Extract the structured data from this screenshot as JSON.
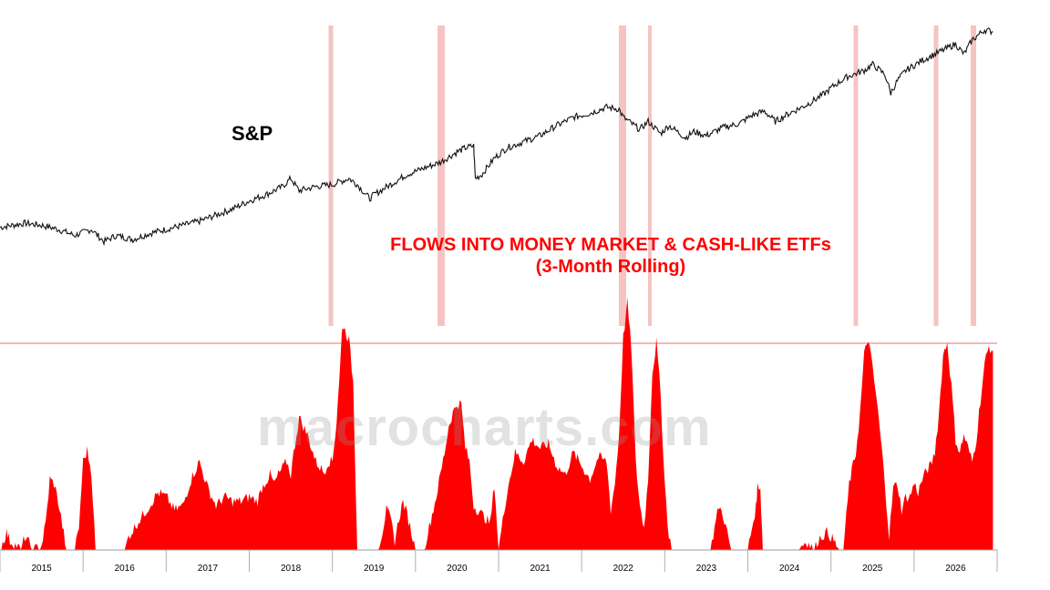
{
  "chart_data": {
    "type": "area",
    "title": "FLOWS INTO MONEY MARKET & CASH-LIKE ETFs",
    "subtitle": "(3-Month Rolling)",
    "upper_series_label": "S&P",
    "watermark": "macrocharts.com",
    "x_tick_labels": [
      "2015",
      "2016",
      "2017",
      "2018",
      "2019",
      "2020",
      "2021",
      "2022",
      "2023",
      "2024",
      "2025",
      "2026"
    ],
    "x_range": [
      2014.5,
      2026.5
    ],
    "threshold_line": true,
    "grid": false,
    "sp_series": {
      "x": [
        2014.5,
        2014.8,
        2015.0,
        2015.2,
        2015.4,
        2015.6,
        2015.75,
        2015.9,
        2016.0,
        2016.1,
        2016.3,
        2016.5,
        2016.7,
        2016.9,
        2017.1,
        2017.3,
        2017.5,
        2017.7,
        2017.9,
        2018.0,
        2018.05,
        2018.1,
        2018.3,
        2018.5,
        2018.7,
        2018.8,
        2018.95,
        2019.0,
        2019.2,
        2019.4,
        2019.6,
        2019.8,
        2020.0,
        2020.1,
        2020.2,
        2020.22,
        2020.3,
        2020.45,
        2020.6,
        2020.8,
        2021.0,
        2021.2,
        2021.4,
        2021.6,
        2021.8,
        2021.95,
        2022.0,
        2022.2,
        2022.3,
        2022.45,
        2022.55,
        2022.75,
        2022.85,
        2023.0,
        2023.2,
        2023.4,
        2023.55,
        2023.7,
        2023.83,
        2024.0,
        2024.2,
        2024.4,
        2024.55,
        2024.7,
        2024.9,
        2025.0,
        2025.15,
        2025.22,
        2025.3,
        2025.4,
        2025.6,
        2025.8,
        2026.0,
        2026.1,
        2026.2,
        2026.35,
        2026.45
      ],
      "y": [
        100,
        102,
        101,
        99,
        96,
        99,
        93,
        96,
        95,
        94,
        97,
        99,
        101,
        103,
        106,
        109,
        113,
        116,
        120,
        124,
        121,
        118,
        120,
        121,
        124,
        121,
        114,
        116,
        121,
        126,
        129,
        132,
        137,
        139,
        140,
        124,
        126,
        134,
        139,
        142,
        145,
        150,
        154,
        156,
        159,
        158,
        154,
        148,
        152,
        146,
        150,
        144,
        147,
        145,
        149,
        151,
        155,
        157,
        152,
        156,
        160,
        165,
        170,
        174,
        177,
        180,
        175,
        166,
        172,
        177,
        182,
        186,
        190,
        185,
        192,
        197,
        196
      ]
    },
    "flows_series": {
      "x": [
        2014.5,
        2014.58,
        2014.62,
        2014.7,
        2014.75,
        2014.8,
        2014.9,
        2015.0,
        2015.05,
        2015.1,
        2015.15,
        2015.2,
        2015.3,
        2015.4,
        2015.45,
        2015.5,
        2015.55,
        2015.6,
        2015.65,
        2015.75,
        2015.85,
        2015.95,
        2016.0,
        2016.05,
        2016.15,
        2016.3,
        2016.4,
        2016.5,
        2016.6,
        2016.7,
        2016.8,
        2016.9,
        2017.0,
        2017.1,
        2017.2,
        2017.3,
        2017.4,
        2017.5,
        2017.6,
        2017.65,
        2017.75,
        2017.8,
        2017.85,
        2017.95,
        2018.0,
        2018.05,
        2018.1,
        2018.2,
        2018.3,
        2018.4,
        2018.45,
        2018.5,
        2018.55,
        2018.6,
        2018.62,
        2018.7,
        2018.75,
        2018.8,
        2018.85,
        2018.9,
        2018.95,
        2019.0,
        2019.05,
        2019.1,
        2019.15,
        2019.2,
        2019.25,
        2019.3,
        2019.35,
        2019.4,
        2019.5,
        2019.55,
        2019.6,
        2019.65,
        2019.7,
        2019.75,
        2019.8,
        2019.85,
        2019.9,
        2019.95,
        2020.0,
        2020.05,
        2020.1,
        2020.15,
        2020.2,
        2020.3,
        2020.4,
        2020.45,
        2020.5,
        2020.6,
        2020.7,
        2020.8,
        2020.9,
        2021.0,
        2021.1,
        2021.2,
        2021.3,
        2021.4,
        2021.5,
        2021.6,
        2021.7,
        2021.8,
        2021.85,
        2021.9,
        2021.95,
        2022.0,
        2022.05,
        2022.1,
        2022.15,
        2022.2,
        2022.25,
        2022.3,
        2022.35,
        2022.4,
        2022.45,
        2022.5,
        2022.55,
        2022.6,
        2022.65,
        2022.7,
        2022.75,
        2022.8,
        2022.85,
        2022.9,
        2022.95,
        2023.0,
        2023.05,
        2023.1,
        2023.15,
        2023.2,
        2023.3,
        2023.5,
        2023.6,
        2023.62,
        2023.65,
        2023.68,
        2023.7,
        2023.8,
        2024.0,
        2024.1,
        2024.2,
        2024.3,
        2024.35,
        2024.45,
        2024.5,
        2024.6,
        2024.65,
        2024.72,
        2024.8,
        2024.85,
        2024.9,
        2024.95,
        2025.0,
        2025.05,
        2025.1,
        2025.15,
        2025.2,
        2025.25,
        2025.3,
        2025.35,
        2025.4,
        2025.45,
        2025.5,
        2025.55,
        2025.6,
        2025.65,
        2025.7,
        2025.75,
        2025.8,
        2025.85,
        2025.9,
        2025.95,
        2026.0,
        2026.05,
        2026.1,
        2026.15,
        2026.2,
        2026.25,
        2026.3,
        2026.35,
        2026.4,
        2026.45
      ],
      "y": [
        0,
        8,
        4,
        2,
        0,
        6,
        0,
        2,
        12,
        32,
        30,
        22,
        0,
        0,
        10,
        40,
        45,
        35,
        0,
        0,
        0,
        0,
        0,
        6,
        12,
        20,
        26,
        24,
        18,
        20,
        32,
        40,
        28,
        20,
        24,
        22,
        22,
        24,
        22,
        28,
        34,
        30,
        34,
        40,
        34,
        48,
        60,
        52,
        40,
        35,
        40,
        40,
        58,
        88,
        102,
        95,
        76,
        0,
        0,
        0,
        0,
        0,
        0,
        8,
        18,
        14,
        4,
        14,
        22,
        16,
        0,
        0,
        0,
        8,
        16,
        24,
        34,
        44,
        56,
        62,
        66,
        66,
        46,
        40,
        20,
        16,
        12,
        30,
        0,
        26,
        44,
        40,
        50,
        46,
        48,
        38,
        34,
        44,
        38,
        32,
        42,
        40,
        18,
        30,
        52,
        96,
        112,
        90,
        40,
        20,
        10,
        32,
        80,
        94,
        70,
        30,
        5,
        0,
        0,
        0,
        0,
        0,
        0,
        0,
        0,
        0,
        0,
        10,
        20,
        16,
        0,
        0,
        20,
        30,
        28,
        0,
        0,
        0,
        0,
        0,
        4,
        0,
        5,
        8,
        6,
        0,
        0,
        30,
        44,
        62,
        88,
        96,
        82,
        68,
        50,
        30,
        6,
        28,
        30,
        18,
        24,
        24,
        30,
        26,
        32,
        36,
        38,
        44,
        62,
        88,
        94,
        74,
        50,
        44,
        52,
        46,
        40,
        50,
        68,
        84,
        92,
        90
      ]
    }
  }
}
